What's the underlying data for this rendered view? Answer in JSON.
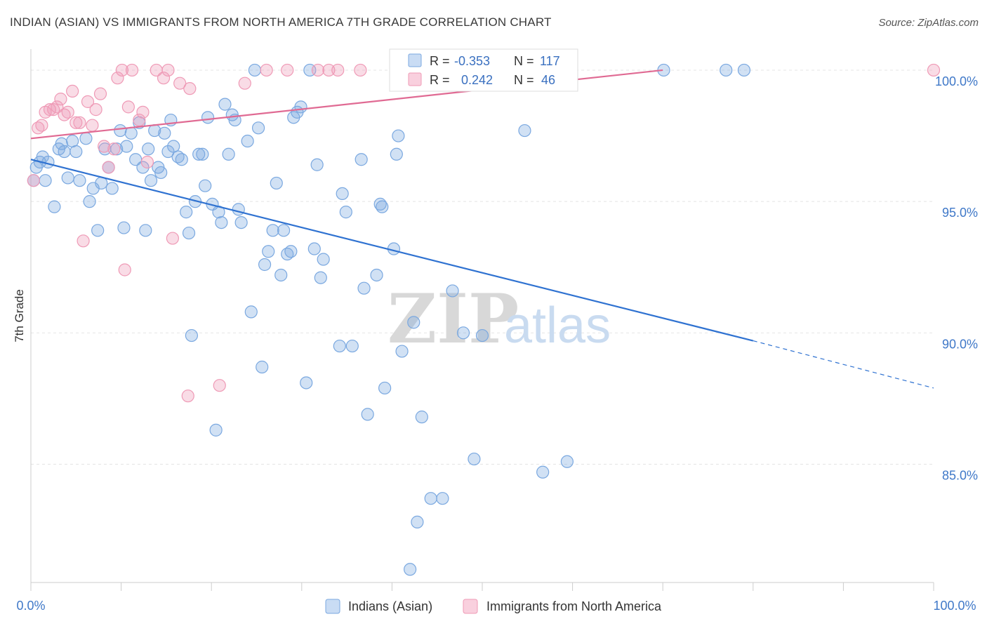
{
  "title": "INDIAN (ASIAN) VS IMMIGRANTS FROM NORTH AMERICA 7TH GRADE CORRELATION CHART",
  "source": "Source: ZipAtlas.com",
  "watermark": {
    "zip": "ZIP",
    "atlas": "atlas"
  },
  "colors": {
    "blue": "#7aa8e0",
    "blue_line": "#2f72d1",
    "pink": "#ef9ab6",
    "pink_line": "#e06a93",
    "grid": "#e4e4e4",
    "tick_text": "#3f78c8"
  },
  "stats": [
    {
      "r_label": "R =",
      "r_value": "-0.353",
      "n_label": "N =",
      "n_value": "117"
    },
    {
      "r_label": "R =",
      "r_value": "0.242",
      "n_label": "N =",
      "n_value": "46"
    }
  ],
  "chart_data": {
    "type": "scatter",
    "title": "INDIAN (ASIAN) VS IMMIGRANTS FROM NORTH AMERICA 7TH GRADE CORRELATION CHART",
    "xlabel": "",
    "ylabel": "7th Grade",
    "xlim": [
      0,
      100
    ],
    "ylim": [
      80.5,
      100.8
    ],
    "x_tick_labels": [
      "0.0%",
      "100.0%"
    ],
    "y_ticks": [
      85,
      90,
      95,
      100
    ],
    "y_tick_labels": [
      "85.0%",
      "90.0%",
      "95.0%",
      "100.0%"
    ],
    "grid": true,
    "legend": "bottom-center",
    "series": [
      {
        "name": "Indians (Asian)",
        "color": "#7aa8e0",
        "r": -0.353,
        "n": 117,
        "trend": {
          "x": [
            0,
            80
          ],
          "y": [
            96.6,
            89.7
          ],
          "dashed_to": [
            100,
            87.9
          ]
        },
        "points": [
          [
            0.3,
            95.8
          ],
          [
            0.6,
            96.3
          ],
          [
            1.0,
            96.5
          ],
          [
            1.3,
            96.7
          ],
          [
            1.6,
            95.8
          ],
          [
            1.9,
            96.5
          ],
          [
            2.6,
            94.8
          ],
          [
            3.1,
            97.0
          ],
          [
            3.4,
            97.2
          ],
          [
            3.7,
            96.9
          ],
          [
            4.1,
            95.9
          ],
          [
            4.6,
            97.3
          ],
          [
            5.0,
            96.9
          ],
          [
            5.4,
            95.8
          ],
          [
            6.1,
            97.4
          ],
          [
            6.5,
            95.0
          ],
          [
            6.9,
            95.5
          ],
          [
            7.4,
            93.9
          ],
          [
            7.8,
            95.7
          ],
          [
            8.2,
            97.0
          ],
          [
            8.6,
            96.3
          ],
          [
            9.0,
            95.5
          ],
          [
            9.5,
            97.0
          ],
          [
            9.9,
            97.7
          ],
          [
            10.3,
            94.0
          ],
          [
            10.6,
            97.1
          ],
          [
            11.1,
            97.6
          ],
          [
            11.6,
            96.6
          ],
          [
            12.0,
            98.0
          ],
          [
            12.4,
            96.3
          ],
          [
            12.7,
            93.9
          ],
          [
            13.0,
            97.0
          ],
          [
            13.3,
            95.8
          ],
          [
            13.7,
            97.7
          ],
          [
            14.1,
            96.3
          ],
          [
            14.4,
            96.1
          ],
          [
            14.8,
            97.6
          ],
          [
            15.2,
            96.9
          ],
          [
            15.5,
            98.1
          ],
          [
            15.8,
            97.1
          ],
          [
            16.3,
            96.7
          ],
          [
            16.7,
            96.6
          ],
          [
            17.2,
            94.6
          ],
          [
            17.5,
            93.8
          ],
          [
            17.8,
            89.9
          ],
          [
            18.2,
            95.0
          ],
          [
            18.6,
            96.8
          ],
          [
            19.0,
            96.8
          ],
          [
            19.3,
            95.6
          ],
          [
            19.6,
            98.2
          ],
          [
            20.1,
            94.9
          ],
          [
            20.5,
            86.3
          ],
          [
            20.8,
            94.6
          ],
          [
            21.1,
            94.2
          ],
          [
            21.5,
            98.7
          ],
          [
            21.9,
            96.8
          ],
          [
            22.3,
            98.3
          ],
          [
            22.6,
            98.1
          ],
          [
            23.0,
            94.7
          ],
          [
            23.3,
            94.2
          ],
          [
            24.0,
            97.3
          ],
          [
            24.4,
            90.8
          ],
          [
            24.8,
            100.0
          ],
          [
            25.2,
            97.8
          ],
          [
            25.6,
            88.7
          ],
          [
            25.9,
            92.6
          ],
          [
            26.3,
            93.1
          ],
          [
            26.8,
            93.9
          ],
          [
            27.2,
            95.7
          ],
          [
            27.7,
            92.2
          ],
          [
            28.0,
            93.9
          ],
          [
            28.4,
            93.0
          ],
          [
            28.8,
            93.1
          ],
          [
            29.1,
            98.2
          ],
          [
            29.5,
            98.4
          ],
          [
            29.9,
            98.6
          ],
          [
            30.5,
            88.1
          ],
          [
            30.9,
            100.0
          ],
          [
            31.4,
            93.2
          ],
          [
            31.7,
            96.4
          ],
          [
            32.1,
            92.1
          ],
          [
            32.4,
            92.8
          ],
          [
            34.2,
            89.5
          ],
          [
            34.5,
            95.3
          ],
          [
            34.9,
            94.6
          ],
          [
            35.6,
            89.5
          ],
          [
            36.6,
            96.6
          ],
          [
            36.9,
            91.7
          ],
          [
            37.3,
            86.9
          ],
          [
            38.3,
            92.2
          ],
          [
            38.7,
            94.9
          ],
          [
            38.9,
            94.8
          ],
          [
            39.2,
            87.9
          ],
          [
            40.2,
            93.2
          ],
          [
            40.5,
            96.8
          ],
          [
            40.7,
            97.5
          ],
          [
            41.1,
            89.3
          ],
          [
            41.9,
            100.0
          ],
          [
            42.4,
            90.4
          ],
          [
            42.8,
            82.8
          ],
          [
            43.3,
            86.8
          ],
          [
            44.3,
            83.7
          ],
          [
            45.6,
            83.7
          ],
          [
            46.7,
            91.6
          ],
          [
            47.3,
            100.0
          ],
          [
            47.9,
            90.0
          ],
          [
            49.1,
            85.2
          ],
          [
            50.0,
            89.9
          ],
          [
            52.5,
            100.0
          ],
          [
            54.7,
            97.7
          ],
          [
            56.7,
            84.7
          ],
          [
            59.4,
            85.1
          ],
          [
            70.1,
            100.0
          ],
          [
            77.0,
            100.0
          ],
          [
            79.0,
            100.0
          ],
          [
            43.0,
            100.0
          ],
          [
            42.0,
            81.0
          ]
        ]
      },
      {
        "name": "Immigrants from North America",
        "color": "#ef9ab6",
        "r": 0.242,
        "n": 46,
        "trend": {
          "x": [
            0,
            70
          ],
          "y": [
            97.4,
            100.0
          ]
        },
        "points": [
          [
            0.3,
            95.8
          ],
          [
            0.8,
            97.8
          ],
          [
            1.2,
            97.9
          ],
          [
            1.6,
            98.4
          ],
          [
            2.1,
            98.5
          ],
          [
            2.5,
            98.5
          ],
          [
            2.9,
            98.6
          ],
          [
            3.3,
            98.9
          ],
          [
            3.7,
            98.3
          ],
          [
            4.1,
            98.4
          ],
          [
            4.6,
            99.2
          ],
          [
            5.0,
            98.0
          ],
          [
            5.4,
            98.0
          ],
          [
            5.8,
            93.5
          ],
          [
            6.3,
            98.8
          ],
          [
            6.8,
            97.9
          ],
          [
            7.2,
            98.5
          ],
          [
            7.7,
            99.1
          ],
          [
            8.1,
            97.1
          ],
          [
            8.6,
            96.3
          ],
          [
            9.2,
            97.0
          ],
          [
            9.6,
            99.7
          ],
          [
            10.1,
            100.0
          ],
          [
            10.4,
            92.4
          ],
          [
            10.8,
            98.6
          ],
          [
            11.2,
            100.0
          ],
          [
            12.0,
            98.1
          ],
          [
            12.4,
            98.4
          ],
          [
            12.9,
            96.5
          ],
          [
            13.9,
            100.0
          ],
          [
            14.7,
            99.7
          ],
          [
            15.2,
            100.0
          ],
          [
            15.7,
            93.6
          ],
          [
            16.5,
            99.5
          ],
          [
            17.4,
            87.6
          ],
          [
            17.6,
            99.3
          ],
          [
            20.9,
            88.0
          ],
          [
            23.7,
            99.5
          ],
          [
            26.1,
            100.0
          ],
          [
            28.4,
            100.0
          ],
          [
            31.8,
            100.0
          ],
          [
            33.0,
            100.0
          ],
          [
            34.0,
            100.0
          ],
          [
            36.5,
            100.0
          ],
          [
            47.2,
            100.0
          ],
          [
            100.0,
            100.0
          ]
        ]
      }
    ]
  }
}
